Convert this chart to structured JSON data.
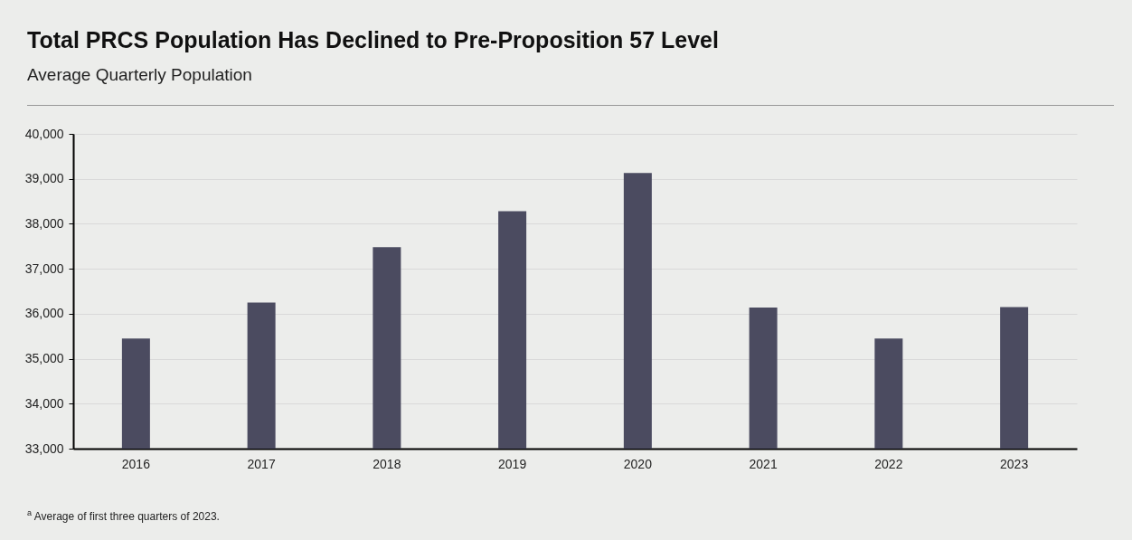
{
  "chart_data": {
    "type": "bar",
    "title": "Total PRCS Population Has Declined to Pre-Proposition 57 Level",
    "subtitle": "Average Quarterly Population",
    "categories": [
      "2016",
      "2017",
      "2018",
      "2019",
      "2020",
      "2021",
      "2022",
      "2023"
    ],
    "values": [
      35450,
      36250,
      37480,
      38280,
      39130,
      36140,
      35450,
      36150
    ],
    "color": "#4b4b60",
    "ylim": [
      33000,
      40000
    ],
    "yticks": [
      {
        "value": 33000,
        "label": "33,000"
      },
      {
        "value": 34000,
        "label": "34,000"
      },
      {
        "value": 35000,
        "label": "35,000"
      },
      {
        "value": 36000,
        "label": "36,000"
      },
      {
        "value": 37000,
        "label": "37,000"
      },
      {
        "value": 38000,
        "label": "38,000"
      },
      {
        "value": 39000,
        "label": "39,000"
      },
      {
        "value": 40000,
        "label": "40,000"
      }
    ],
    "grid": "y",
    "annotations": [
      "$^{a}$ Average of first three quarters of 2023."
    ]
  }
}
